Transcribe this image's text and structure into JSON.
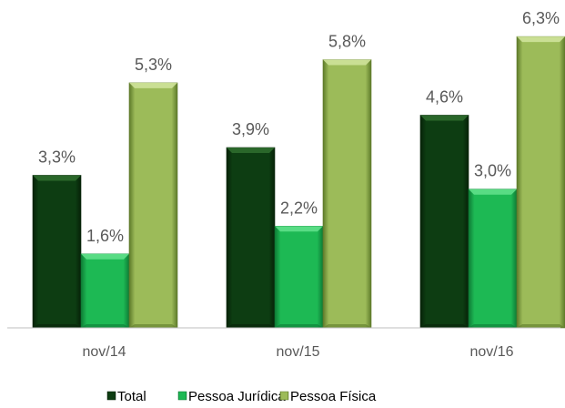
{
  "chart_data": {
    "type": "bar",
    "categories": [
      "nov/14",
      "nov/15",
      "nov/16"
    ],
    "series": [
      {
        "name": "Total",
        "values": [
          3.3,
          3.9,
          4.6
        ],
        "labels": [
          "3,3%",
          "3,9%",
          "4,6%"
        ],
        "color": "#0d3d12",
        "color_light": "#2d6b2e",
        "color_dark": "#062208"
      },
      {
        "name": "Pessoa Jurídica",
        "values": [
          1.6,
          2.2,
          3.0
        ],
        "labels": [
          "1,6%",
          "2,2%",
          "3,0%"
        ],
        "color": "#1db954",
        "color_light": "#5fe08a",
        "color_dark": "#0e7a35"
      },
      {
        "name": "Pessoa Física",
        "values": [
          5.3,
          5.8,
          6.3
        ],
        "labels": [
          "5,3%",
          "5,8%",
          "6,3%"
        ],
        "color": "#9cbb59",
        "color_light": "#cfe39a",
        "color_dark": "#5e7a2a"
      }
    ],
    "ylim": [
      0,
      6.5
    ],
    "grid": false,
    "legend": "bottom",
    "legend_markers": "square"
  }
}
